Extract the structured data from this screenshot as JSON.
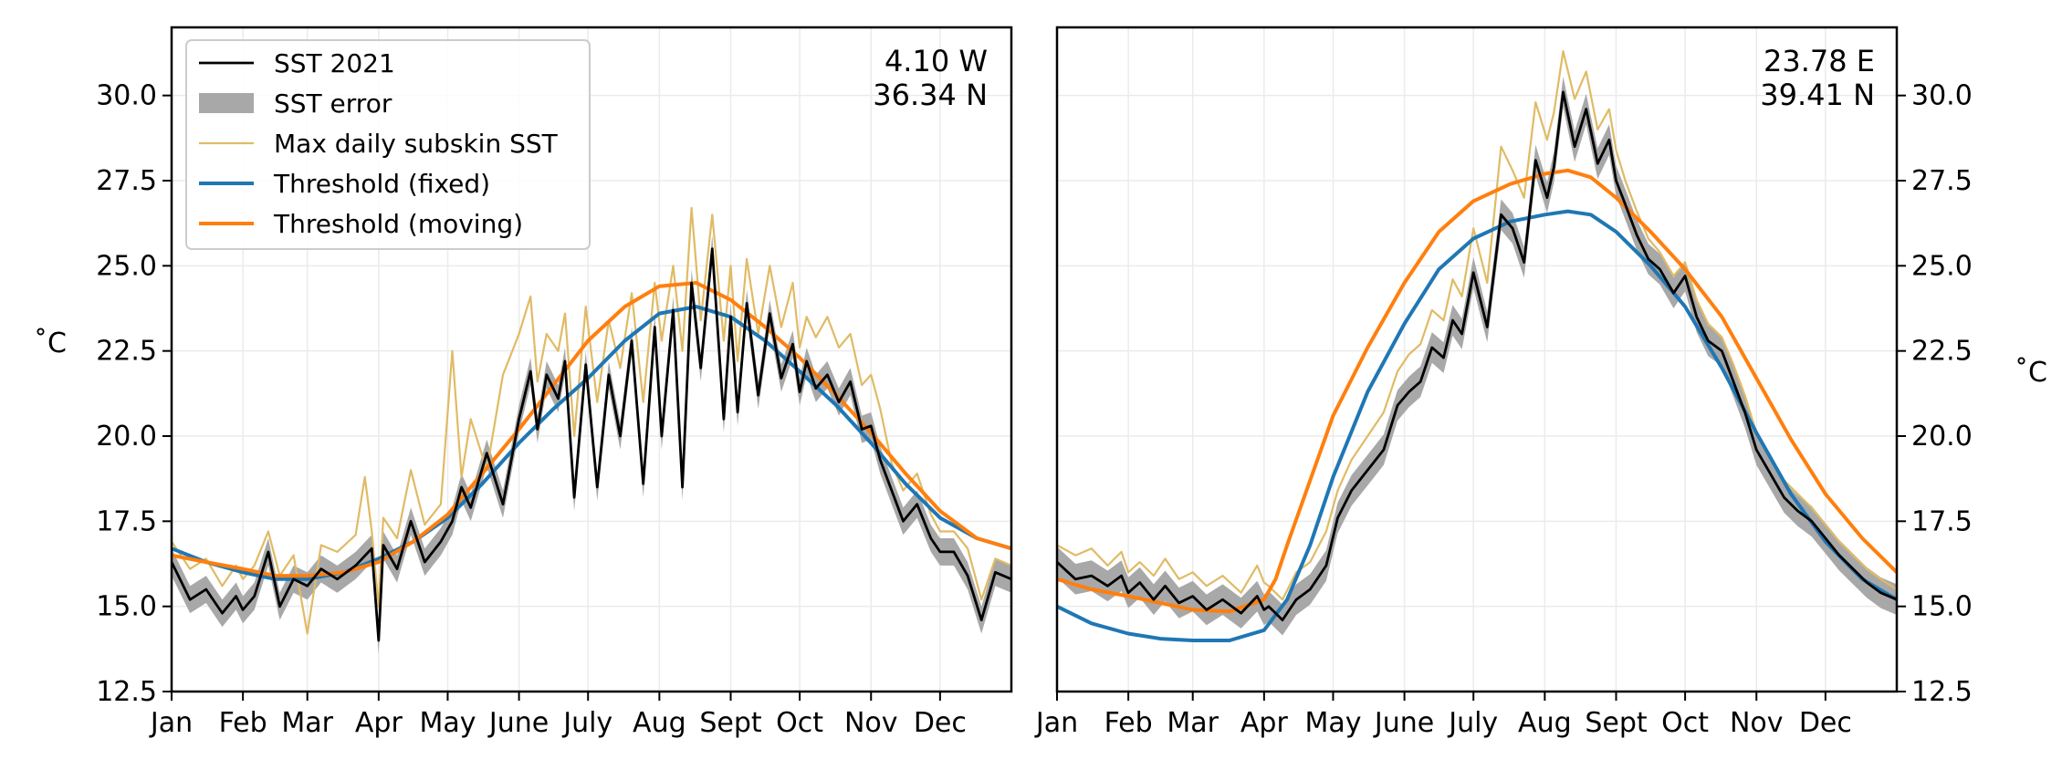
{
  "chart_data": [
    {
      "type": "line",
      "panel": "left",
      "annotation": [
        "4.10 W",
        "36.34 N"
      ],
      "ylabel": "˚C",
      "ylabel_side": "left",
      "ylim": [
        12.5,
        32.0
      ],
      "yticks": [
        12.5,
        15.0,
        17.5,
        20.0,
        22.5,
        25.0,
        27.5,
        30.0
      ],
      "ytick_labels": [
        "12.5",
        "15.0",
        "17.5",
        "20.0",
        "22.5",
        "25.0",
        "27.5",
        "30.0"
      ],
      "xlim": [
        0,
        365
      ],
      "x_unit": "day of year 2021",
      "xticks": [
        0,
        31,
        59,
        90,
        120,
        151,
        181,
        212,
        243,
        273,
        304,
        334
      ],
      "xtick_labels": [
        "Jan",
        "Feb",
        "Mar",
        "Apr",
        "May",
        "June",
        "July",
        "Aug",
        "Sept",
        "Oct",
        "Nov",
        "Dec"
      ],
      "grid": true,
      "legend": {
        "placement": "upper-left",
        "entries": [
          {
            "label": "SST 2021",
            "series": "sst",
            "kind": "line"
          },
          {
            "label": "SST error",
            "series": "error",
            "kind": "patch"
          },
          {
            "label": "Max daily subskin SST",
            "series": "max",
            "kind": "line"
          },
          {
            "label": "Threshold (fixed)",
            "series": "fixed",
            "kind": "line"
          },
          {
            "label": "Threshold (moving)",
            "series": "moving",
            "kind": "line"
          }
        ]
      },
      "series": [
        {
          "key": "fixed",
          "color": "#1f77b4",
          "x": [
            0,
            15,
            31,
            45,
            59,
            75,
            90,
            105,
            120,
            135,
            151,
            166,
            181,
            197,
            212,
            228,
            243,
            258,
            273,
            289,
            304,
            319,
            334,
            350,
            365
          ],
          "y": [
            16.7,
            16.3,
            16.0,
            15.8,
            15.8,
            16.0,
            16.4,
            16.9,
            17.6,
            18.6,
            19.8,
            20.8,
            21.7,
            22.8,
            23.6,
            23.8,
            23.5,
            22.8,
            21.9,
            20.9,
            19.8,
            18.6,
            17.6,
            17.0,
            16.7
          ]
        },
        {
          "key": "moving",
          "color": "#ff7f0e",
          "x": [
            0,
            15,
            31,
            45,
            59,
            75,
            90,
            105,
            120,
            135,
            151,
            166,
            181,
            197,
            212,
            228,
            243,
            258,
            273,
            289,
            304,
            319,
            334,
            350,
            365
          ],
          "y": [
            16.5,
            16.3,
            16.1,
            15.9,
            15.9,
            16.0,
            16.3,
            16.9,
            17.7,
            18.9,
            20.2,
            21.5,
            22.8,
            23.8,
            24.4,
            24.5,
            24.0,
            23.2,
            22.3,
            21.2,
            20.1,
            18.9,
            17.8,
            17.0,
            16.7
          ]
        },
        {
          "key": "sst",
          "color": "#000000",
          "error": 0.4,
          "error_color": "#a8a8a8",
          "x": [
            0,
            8,
            15,
            22,
            28,
            31,
            36,
            42,
            47,
            53,
            59,
            65,
            72,
            80,
            87,
            90,
            92,
            98,
            104,
            110,
            117,
            122,
            126,
            130,
            137,
            144,
            151,
            156,
            159,
            163,
            168,
            171,
            175,
            180,
            185,
            190,
            195,
            200,
            205,
            210,
            213,
            218,
            222,
            226,
            230,
            235,
            240,
            243,
            246,
            250,
            255,
            260,
            265,
            270,
            273,
            276,
            280,
            285,
            290,
            295,
            300,
            304,
            308,
            313,
            318,
            324,
            330,
            334,
            340,
            346,
            352,
            358,
            365
          ],
          "y": [
            16.3,
            15.2,
            15.5,
            14.8,
            15.3,
            14.9,
            15.3,
            16.6,
            15.0,
            15.8,
            15.6,
            16.1,
            15.8,
            16.2,
            16.7,
            14.0,
            16.8,
            16.1,
            17.5,
            16.3,
            16.9,
            17.5,
            18.5,
            17.9,
            19.5,
            18.0,
            20.5,
            21.9,
            20.2,
            21.8,
            21.1,
            22.2,
            18.2,
            22.1,
            18.5,
            21.8,
            20.0,
            22.8,
            18.6,
            23.2,
            20.0,
            23.7,
            18.5,
            24.5,
            22.0,
            25.5,
            20.5,
            23.5,
            20.7,
            23.9,
            21.2,
            23.6,
            21.7,
            22.7,
            21.3,
            22.2,
            21.4,
            21.8,
            21.0,
            21.6,
            20.2,
            20.3,
            19.3,
            18.4,
            17.5,
            18.0,
            17.0,
            16.6,
            16.6,
            15.9,
            14.6,
            16.0,
            15.8
          ]
        },
        {
          "key": "max",
          "color": "#e0bb65",
          "x": [
            0,
            8,
            15,
            22,
            28,
            31,
            36,
            42,
            47,
            53,
            59,
            65,
            72,
            80,
            84,
            87,
            90,
            92,
            98,
            104,
            110,
            117,
            122,
            126,
            130,
            137,
            144,
            151,
            156,
            159,
            163,
            168,
            171,
            175,
            180,
            185,
            190,
            195,
            200,
            205,
            210,
            213,
            218,
            222,
            226,
            230,
            235,
            240,
            243,
            246,
            250,
            255,
            260,
            265,
            270,
            273,
            276,
            280,
            285,
            290,
            295,
            300,
            304,
            308,
            313,
            318,
            324,
            330,
            334,
            340,
            346,
            352,
            358,
            365
          ],
          "y": [
            16.9,
            16.1,
            16.4,
            15.6,
            16.2,
            15.8,
            16.2,
            17.2,
            15.9,
            16.5,
            14.2,
            16.8,
            16.6,
            17.1,
            18.8,
            17.2,
            15.0,
            17.6,
            17.0,
            19.0,
            17.4,
            18.0,
            22.5,
            18.8,
            20.5,
            19.0,
            21.8,
            23.0,
            24.1,
            21.6,
            23.0,
            22.5,
            23.6,
            20.0,
            23.8,
            21.0,
            23.4,
            22.0,
            24.2,
            21.0,
            24.5,
            22.8,
            25.0,
            22.5,
            26.7,
            23.4,
            26.5,
            22.8,
            25.0,
            22.2,
            25.2,
            23.0,
            25.0,
            23.2,
            24.5,
            22.6,
            23.5,
            22.9,
            23.5,
            22.6,
            23.0,
            21.5,
            21.8,
            20.8,
            19.2,
            18.4,
            18.9,
            17.7,
            17.2,
            17.2,
            16.7,
            15.2,
            16.4,
            16.2
          ]
        }
      ]
    },
    {
      "type": "line",
      "panel": "right",
      "annotation": [
        "23.78 E",
        "39.41 N"
      ],
      "ylabel": "˚C",
      "ylabel_side": "right",
      "ylim": [
        12.5,
        32.0
      ],
      "yticks": [
        12.5,
        15.0,
        17.5,
        20.0,
        22.5,
        25.0,
        27.5,
        30.0
      ],
      "ytick_labels": [
        "12.5",
        "15.0",
        "17.5",
        "20.0",
        "22.5",
        "25.0",
        "27.5",
        "30.0"
      ],
      "xlim": [
        0,
        365
      ],
      "x_unit": "day of year 2021",
      "xticks": [
        0,
        31,
        59,
        90,
        120,
        151,
        181,
        212,
        243,
        273,
        304,
        334
      ],
      "xtick_labels": [
        "Jan",
        "Feb",
        "Mar",
        "Apr",
        "May",
        "June",
        "July",
        "Aug",
        "Sept",
        "Oct",
        "Nov",
        "Dec"
      ],
      "grid": true,
      "series": [
        {
          "key": "fixed",
          "color": "#1f77b4",
          "x": [
            0,
            15,
            31,
            45,
            59,
            75,
            90,
            100,
            110,
            120,
            135,
            151,
            166,
            181,
            197,
            212,
            222,
            232,
            243,
            258,
            273,
            289,
            304,
            319,
            334,
            350,
            365
          ],
          "y": [
            15.0,
            14.5,
            14.2,
            14.05,
            14.0,
            14.0,
            14.3,
            15.2,
            16.8,
            18.8,
            21.3,
            23.3,
            24.9,
            25.8,
            26.3,
            26.5,
            26.6,
            26.5,
            26.0,
            25.0,
            23.8,
            22.0,
            20.1,
            18.3,
            16.9,
            15.8,
            15.2
          ]
        },
        {
          "key": "moving",
          "color": "#ff7f0e",
          "x": [
            0,
            15,
            31,
            45,
            59,
            75,
            90,
            95,
            100,
            110,
            120,
            135,
            151,
            166,
            181,
            197,
            212,
            222,
            232,
            243,
            258,
            273,
            289,
            304,
            319,
            334,
            350,
            365
          ],
          "y": [
            15.8,
            15.5,
            15.3,
            15.1,
            14.9,
            14.85,
            15.2,
            15.8,
            16.8,
            18.7,
            20.6,
            22.6,
            24.5,
            26.0,
            26.9,
            27.4,
            27.7,
            27.8,
            27.6,
            27.0,
            26.0,
            24.9,
            23.5,
            21.7,
            19.9,
            18.3,
            17.0,
            16.0
          ]
        },
        {
          "key": "sst",
          "color": "#000000",
          "error": 0.45,
          "error_color": "#a8a8a8",
          "x": [
            0,
            8,
            15,
            22,
            28,
            31,
            36,
            42,
            47,
            53,
            59,
            65,
            72,
            80,
            87,
            90,
            92,
            98,
            104,
            110,
            117,
            122,
            128,
            135,
            142,
            148,
            153,
            158,
            163,
            168,
            172,
            176,
            181,
            187,
            193,
            198,
            203,
            208,
            213,
            216,
            220,
            225,
            230,
            235,
            240,
            243,
            247,
            252,
            257,
            262,
            268,
            273,
            278,
            283,
            289,
            294,
            299,
            304,
            310,
            316,
            322,
            328,
            334,
            340,
            346,
            352,
            358,
            365
          ],
          "y": [
            16.3,
            15.8,
            15.9,
            15.6,
            15.9,
            15.4,
            15.7,
            15.2,
            15.6,
            15.1,
            15.3,
            14.9,
            15.2,
            14.8,
            15.3,
            14.9,
            15.0,
            14.6,
            15.2,
            15.5,
            16.2,
            17.6,
            18.4,
            19.0,
            19.6,
            20.9,
            21.3,
            21.6,
            22.6,
            22.3,
            23.4,
            23.0,
            24.8,
            23.2,
            26.5,
            26.1,
            25.1,
            28.1,
            27.0,
            27.9,
            30.1,
            28.5,
            29.6,
            28.0,
            28.7,
            27.5,
            26.8,
            25.9,
            25.2,
            24.9,
            24.2,
            24.7,
            23.5,
            22.8,
            22.5,
            21.6,
            20.7,
            19.6,
            18.9,
            18.2,
            17.8,
            17.5,
            17.0,
            16.5,
            16.1,
            15.7,
            15.4,
            15.2
          ]
        },
        {
          "key": "max",
          "color": "#e0bb65",
          "x": [
            0,
            8,
            15,
            22,
            28,
            31,
            36,
            42,
            47,
            53,
            59,
            65,
            72,
            80,
            87,
            90,
            92,
            98,
            104,
            110,
            117,
            122,
            128,
            135,
            142,
            148,
            153,
            158,
            163,
            168,
            172,
            176,
            181,
            187,
            193,
            198,
            203,
            208,
            213,
            216,
            220,
            225,
            230,
            235,
            240,
            243,
            247,
            252,
            257,
            262,
            268,
            273,
            278,
            283,
            289,
            294,
            299,
            304,
            310,
            316,
            322,
            328,
            334,
            340,
            346,
            352,
            358,
            365
          ],
          "y": [
            16.8,
            16.5,
            16.7,
            16.2,
            16.6,
            16.0,
            16.3,
            15.9,
            16.4,
            15.8,
            16.0,
            15.6,
            15.9,
            15.4,
            16.2,
            15.7,
            15.6,
            15.2,
            16.0,
            16.3,
            17.2,
            18.4,
            19.3,
            20.0,
            20.7,
            21.9,
            22.4,
            22.7,
            23.7,
            23.4,
            24.6,
            24.1,
            26.1,
            24.5,
            28.5,
            27.8,
            27.0,
            29.8,
            28.7,
            29.5,
            31.3,
            29.9,
            30.7,
            29.0,
            29.6,
            28.4,
            27.5,
            26.6,
            25.8,
            25.4,
            24.7,
            25.1,
            24.0,
            23.3,
            22.9,
            22.1,
            21.2,
            20.1,
            19.4,
            18.7,
            18.3,
            17.9,
            17.4,
            16.9,
            16.5,
            16.1,
            15.8,
            15.5
          ]
        }
      ]
    }
  ]
}
